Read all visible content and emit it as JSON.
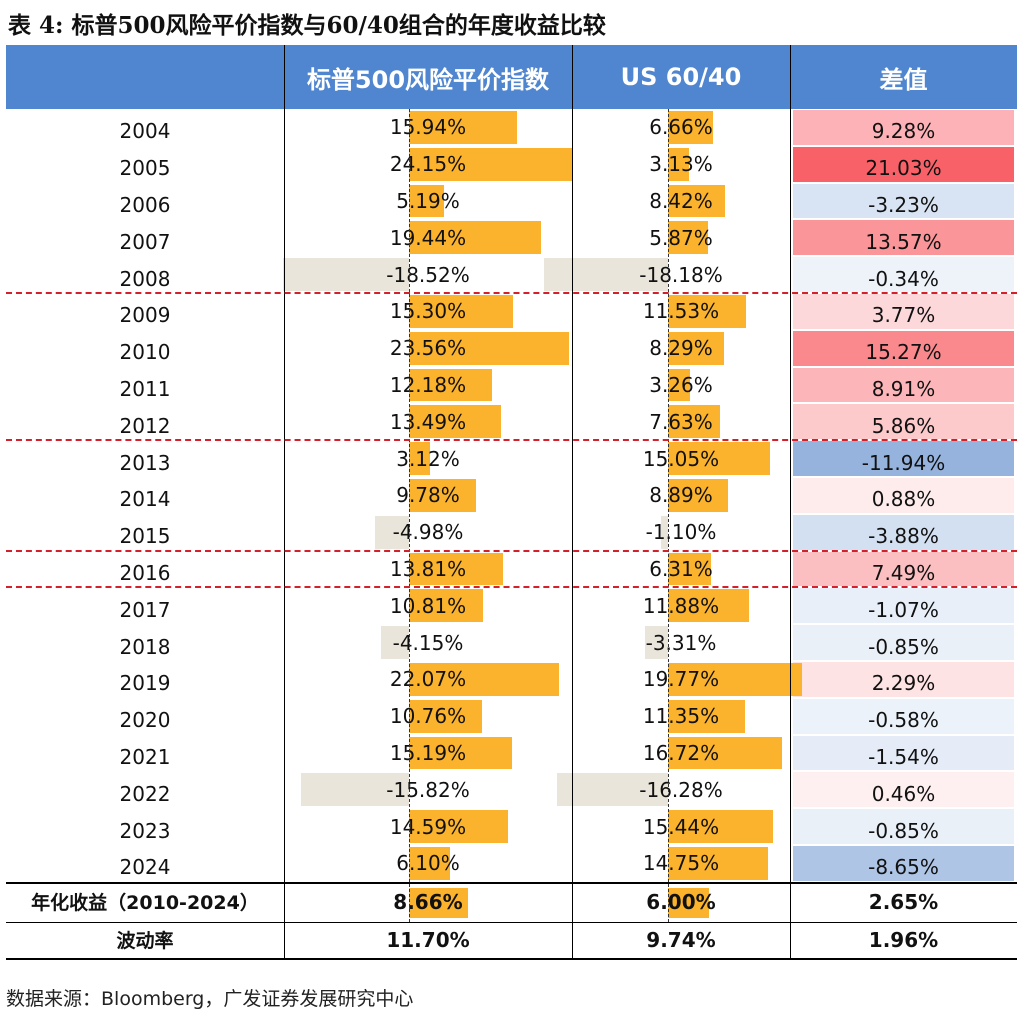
{
  "title": "表 4:  标普500风险平价指数与60/40组合的年度收益比较",
  "source": "数据来源：Bloomberg，广发证券发展研究中心",
  "colors": {
    "header": "#4f86cf",
    "bar_pos": "#fbb22c",
    "bar_neg": "#e9e5da",
    "diff_pos": "#f86168",
    "diff_neg": "#4f81c7"
  },
  "chart_data": {
    "type": "table",
    "headers": [
      "",
      "标普500风险平价指数",
      "US 60/40",
      "差值"
    ],
    "years": [
      "2004",
      "2005",
      "2006",
      "2007",
      "2008",
      "2009",
      "2010",
      "2011",
      "2012",
      "2013",
      "2014",
      "2015",
      "2016",
      "2017",
      "2018",
      "2019",
      "2020",
      "2021",
      "2022",
      "2023",
      "2024"
    ],
    "rp_values": [
      15.94,
      24.15,
      5.19,
      19.44,
      -18.52,
      15.3,
      23.56,
      12.18,
      13.49,
      3.12,
      9.78,
      -4.98,
      13.81,
      10.81,
      -4.15,
      22.07,
      10.76,
      15.19,
      -15.82,
      14.59,
      6.1
    ],
    "rp_labels": [
      "15.94%",
      "24.15%",
      "5.19%",
      "19.44%",
      "-18.52%",
      "15.30%",
      "23.56%",
      "12.18%",
      "13.49%",
      "3.12%",
      "9.78%",
      "-4.98%",
      "13.81%",
      "10.81%",
      "-4.15%",
      "22.07%",
      "10.76%",
      "15.19%",
      "-15.82%",
      "14.59%",
      "6.10%"
    ],
    "us_values": [
      6.66,
      3.13,
      8.42,
      5.87,
      -18.18,
      11.53,
      8.29,
      3.26,
      7.63,
      15.05,
      8.89,
      -1.1,
      6.31,
      11.88,
      -3.31,
      19.77,
      11.35,
      16.72,
      -16.28,
      15.44,
      14.75
    ],
    "us_labels": [
      "6.66%",
      "3.13%",
      "8.42%",
      "5.87%",
      "-18.18%",
      "11.53%",
      "8.29%",
      "3.26%",
      "7.63%",
      "15.05%",
      "8.89%",
      "-1.10%",
      "6.31%",
      "11.88%",
      "-3.31%",
      "19.77%",
      "11.35%",
      "16.72%",
      "-16.28%",
      "15.44%",
      "14.75%"
    ],
    "diff_values": [
      9.28,
      21.03,
      -3.23,
      13.57,
      -0.34,
      3.77,
      15.27,
      8.91,
      5.86,
      -11.94,
      0.88,
      -3.88,
      7.49,
      -1.07,
      -0.85,
      2.29,
      -0.58,
      -1.54,
      0.46,
      -0.85,
      -8.65
    ],
    "diff_labels": [
      "9.28%",
      "21.03%",
      "-3.23%",
      "13.57%",
      "-0.34%",
      "3.77%",
      "15.27%",
      "8.91%",
      "5.86%",
      "-11.94%",
      "0.88%",
      "-3.88%",
      "7.49%",
      "-1.07%",
      "-0.85%",
      "2.29%",
      "-0.58%",
      "-1.54%",
      "0.46%",
      "-0.85%",
      "-8.65%"
    ],
    "footer_rows": [
      {
        "label": "年化收益（2010-2024）",
        "rp_label": "8.66%",
        "rp_value": 8.66,
        "us_label": "6.00%",
        "us_value": 6.0,
        "diff_label": "2.65%"
      },
      {
        "label": "波动率",
        "rp_label": "11.70%",
        "us_label": "9.74%",
        "diff_label": "1.96%"
      }
    ]
  }
}
